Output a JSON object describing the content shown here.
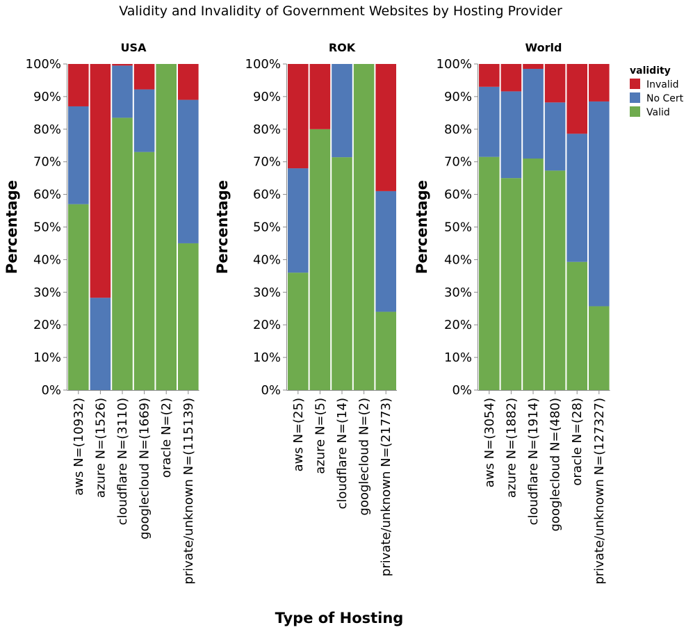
{
  "chart_data": {
    "type": "bar",
    "stacked": true,
    "normalized": true,
    "title": "Validity and Invalidity of Government Websites by Hosting Provider",
    "xlabel": "Type of Hosting",
    "ylabel": "Percentage",
    "ylim": [
      0,
      100
    ],
    "yticks": [
      "0%",
      "10%",
      "20%",
      "30%",
      "40%",
      "50%",
      "60%",
      "70%",
      "80%",
      "90%",
      "100%"
    ],
    "legend": {
      "title": "validity",
      "placement": "top-right",
      "entries": [
        {
          "name": "Invalid",
          "color": "#c8202b"
        },
        {
          "name": "No Cert",
          "color": "#5079b7"
        },
        {
          "name": "Valid",
          "color": "#6fab4e"
        }
      ]
    },
    "facets": [
      {
        "title": "USA",
        "categories": [
          "aws N=(10932)",
          "azure N=(1526)",
          "cloudflare N=(3110)",
          "googlecloud N=(1669)",
          "oracle N=(2)",
          "private/unknown N=(115139)"
        ],
        "series": [
          {
            "name": "Valid",
            "values": [
              57,
              0,
              83.5,
              73,
              100,
              45
            ]
          },
          {
            "name": "No Cert",
            "values": [
              30,
              28.3,
              16,
              19.2,
              0,
              44
            ]
          },
          {
            "name": "Invalid",
            "values": [
              13,
              71.7,
              0.5,
              7.8,
              0,
              11
            ]
          }
        ]
      },
      {
        "title": "ROK",
        "categories": [
          "aws N=(25)",
          "azure N=(5)",
          "cloudflare N=(14)",
          "googlecloud N=(2)",
          "private/unknown N=(21773)"
        ],
        "series": [
          {
            "name": "Valid",
            "values": [
              36,
              80,
              71.4,
              100,
              24
            ]
          },
          {
            "name": "No Cert",
            "values": [
              32,
              0,
              28.6,
              0,
              37
            ]
          },
          {
            "name": "Invalid",
            "values": [
              32,
              20,
              0,
              0,
              39
            ]
          }
        ]
      },
      {
        "title": "World",
        "categories": [
          "aws N=(3054)",
          "azure N=(1882)",
          "cloudflare N=(1914)",
          "googlecloud N=(480)",
          "oracle N=(28)",
          "private/unknown N=(127327)"
        ],
        "series": [
          {
            "name": "Valid",
            "values": [
              71.5,
              65,
              71,
              67.3,
              39.3,
              25.7
            ]
          },
          {
            "name": "No Cert",
            "values": [
              21.5,
              26.6,
              27.5,
              20.9,
              39.3,
              62.8
            ]
          },
          {
            "name": "Invalid",
            "values": [
              7,
              8.4,
              1.5,
              11.8,
              21.4,
              11.5
            ]
          }
        ]
      }
    ]
  }
}
